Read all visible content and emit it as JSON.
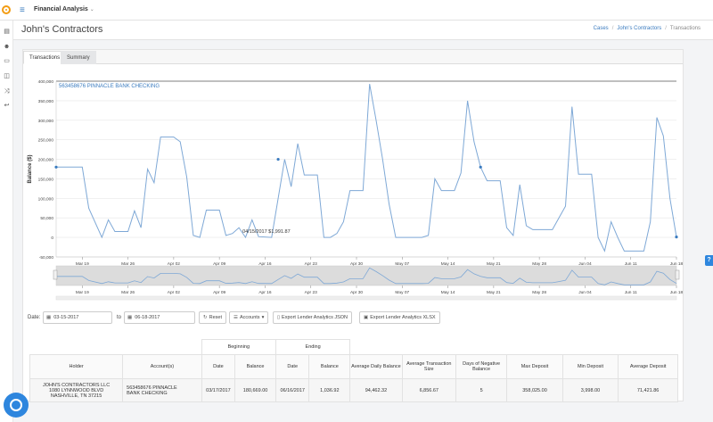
{
  "app": {
    "title": "Financial Analysis",
    "caret": "⌄"
  },
  "page": {
    "title": "John's Contractors"
  },
  "breadcrumb": [
    {
      "label": "Cases",
      "link": true
    },
    {
      "label": "John's Contractors",
      "link": true
    },
    {
      "label": "Transactions",
      "link": false
    }
  ],
  "tabs": [
    {
      "label": "Transactions",
      "active": true
    },
    {
      "label": "Summary",
      "active": false
    }
  ],
  "chart_data": {
    "type": "line",
    "title": "563458676 PINNACLE BANK CHECKING",
    "xlabel": "",
    "ylabel": "Balance ($)",
    "xlim": [
      "2017-03-15",
      "2017-06-18"
    ],
    "ylim": [
      -50000,
      400000
    ],
    "y_ticks": [
      -50000,
      0,
      50000,
      100000,
      150000,
      200000,
      250000,
      300000,
      350000,
      400000
    ],
    "y_tick_labels": [
      "-50,000",
      "0",
      "50,000",
      "100,000",
      "150,000",
      "200,000",
      "250,000",
      "300,000",
      "350,000",
      "400,000"
    ],
    "x_tick_labels": [
      "Mar 19",
      "Mar 26",
      "Apr 02",
      "Apr 09",
      "Apr 16",
      "Apr 23",
      "Apr 30",
      "May 07",
      "May 14",
      "May 21",
      "May 28",
      "Jun 04",
      "Jun 11",
      "Jun 18"
    ],
    "x_tick_dates": [
      "2017-03-19",
      "2017-03-26",
      "2017-04-02",
      "2017-04-09",
      "2017-04-16",
      "2017-04-23",
      "2017-04-30",
      "2017-05-07",
      "2017-05-14",
      "2017-05-21",
      "2017-05-28",
      "2017-06-04",
      "2017-06-11",
      "2017-06-18"
    ],
    "grid": true,
    "series": [
      {
        "name": "563458676 PINNACLE BANK CHECKING",
        "color": "#7ea8d6",
        "points": [
          [
            "2017-03-15",
            180000
          ],
          [
            "2017-03-19",
            180000
          ],
          [
            "2017-03-20",
            75000
          ],
          [
            "2017-03-22",
            0
          ],
          [
            "2017-03-23",
            45000
          ],
          [
            "2017-03-24",
            15000
          ],
          [
            "2017-03-26",
            15000
          ],
          [
            "2017-03-27",
            68000
          ],
          [
            "2017-03-28",
            25000
          ],
          [
            "2017-03-29",
            175000
          ],
          [
            "2017-03-30",
            140000
          ],
          [
            "2017-03-31",
            257000
          ],
          [
            "2017-04-02",
            257000
          ],
          [
            "2017-04-03",
            245000
          ],
          [
            "2017-04-04",
            155000
          ],
          [
            "2017-04-05",
            5000
          ],
          [
            "2017-04-06",
            0
          ],
          [
            "2017-04-07",
            70000
          ],
          [
            "2017-04-09",
            70000
          ],
          [
            "2017-04-10",
            5000
          ],
          [
            "2017-04-11",
            10000
          ],
          [
            "2017-04-12",
            25000
          ],
          [
            "2017-04-13",
            0
          ],
          [
            "2017-04-14",
            45000
          ],
          [
            "2017-04-15",
            1992
          ],
          [
            "2017-04-17",
            0
          ],
          [
            "2017-04-18",
            100000
          ],
          [
            "2017-04-19",
            200000
          ],
          [
            "2017-04-20",
            130000
          ],
          [
            "2017-04-21",
            240000
          ],
          [
            "2017-04-22",
            160000
          ],
          [
            "2017-04-24",
            160000
          ],
          [
            "2017-04-25",
            0
          ],
          [
            "2017-04-26",
            0
          ],
          [
            "2017-04-27",
            10000
          ],
          [
            "2017-04-28",
            40000
          ],
          [
            "2017-04-29",
            120000
          ],
          [
            "2017-05-01",
            120000
          ],
          [
            "2017-05-02",
            393000
          ],
          [
            "2017-05-03",
            300000
          ],
          [
            "2017-05-04",
            200000
          ],
          [
            "2017-05-05",
            85000
          ],
          [
            "2017-05-06",
            0
          ],
          [
            "2017-05-08",
            0
          ],
          [
            "2017-05-09",
            0
          ],
          [
            "2017-05-10",
            0
          ],
          [
            "2017-05-11",
            5000
          ],
          [
            "2017-05-12",
            150000
          ],
          [
            "2017-05-13",
            120000
          ],
          [
            "2017-05-15",
            120000
          ],
          [
            "2017-05-16",
            165000
          ],
          [
            "2017-05-17",
            350000
          ],
          [
            "2017-05-18",
            245000
          ],
          [
            "2017-05-19",
            180000
          ],
          [
            "2017-05-20",
            145000
          ],
          [
            "2017-05-22",
            145000
          ],
          [
            "2017-05-23",
            25000
          ],
          [
            "2017-05-24",
            5000
          ],
          [
            "2017-05-25",
            135000
          ],
          [
            "2017-05-26",
            30000
          ],
          [
            "2017-05-27",
            20000
          ],
          [
            "2017-05-30",
            20000
          ],
          [
            "2017-05-31",
            50000
          ],
          [
            "2017-06-01",
            80000
          ],
          [
            "2017-06-02",
            335000
          ],
          [
            "2017-06-03",
            162000
          ],
          [
            "2017-06-05",
            162000
          ],
          [
            "2017-06-06",
            0
          ],
          [
            "2017-06-07",
            -35000
          ],
          [
            "2017-06-08",
            40000
          ],
          [
            "2017-06-09",
            0
          ],
          [
            "2017-06-10",
            -35000
          ],
          [
            "2017-06-13",
            -35000
          ],
          [
            "2017-06-14",
            40000
          ],
          [
            "2017-06-15",
            307000
          ],
          [
            "2017-06-16",
            260000
          ],
          [
            "2017-06-17",
            100000
          ],
          [
            "2017-06-18",
            1037
          ]
        ],
        "marked_points": [
          [
            "2017-03-15",
            180000
          ],
          [
            "2017-04-18",
            200000
          ],
          [
            "2017-05-19",
            180000
          ],
          [
            "2017-06-18",
            1037
          ]
        ]
      }
    ],
    "annotations": [
      {
        "date": "2017-04-15",
        "value": 1992,
        "text": "04/15/2017 $1,991.87"
      }
    ],
    "navigator": {
      "x_tick_labels": [
        "Mar 19",
        "Mar 26",
        "Apr 02",
        "Apr 09",
        "Apr 16",
        "Apr 23",
        "Apr 30",
        "May 07",
        "May 14",
        "May 21",
        "May 28",
        "Jun 04",
        "Jun 11",
        "Jun 18"
      ]
    }
  },
  "controls": {
    "date_label": "Date:",
    "start_date": "03-15-2017",
    "to_label": "to",
    "end_date": "06-18-2017",
    "reset_label": "Reset",
    "accounts_label": "Accounts",
    "export_json_label": "Export Lender Analytics JSON",
    "export_xlsx_label": "Export Lender Analytics XLSX"
  },
  "summary_table": {
    "group_headers": {
      "beginning": "Beginning",
      "ending": "Ending"
    },
    "columns": [
      "Holder",
      "Account(s)",
      "Date",
      "Balance",
      "Date",
      "Balance",
      "Average Daily Balance",
      "Average Transaction Size",
      "Days of Negative Balance",
      "Max Deposit",
      "Min Deposit",
      "Average Deposit"
    ],
    "rows": [
      {
        "holder": [
          "JOHN'S CONTRACTORS LLC",
          "1080 LYNNWOOD BLVD",
          "NASHVILLE, TN 37215"
        ],
        "account": [
          "563458676 PINNACLE",
          "BANK CHECKING"
        ],
        "begin_date": "03/17/2017",
        "begin_balance": "180,669.00",
        "end_date": "06/16/2017",
        "end_balance": "1,036.92",
        "avg_daily_balance": "94,462.32",
        "avg_txn_size": "6,856.67",
        "days_negative": "5",
        "max_deposit": "358,025.00",
        "min_deposit": "3,998.00",
        "avg_deposit": "71,421.86"
      }
    ]
  },
  "help_label": "?"
}
